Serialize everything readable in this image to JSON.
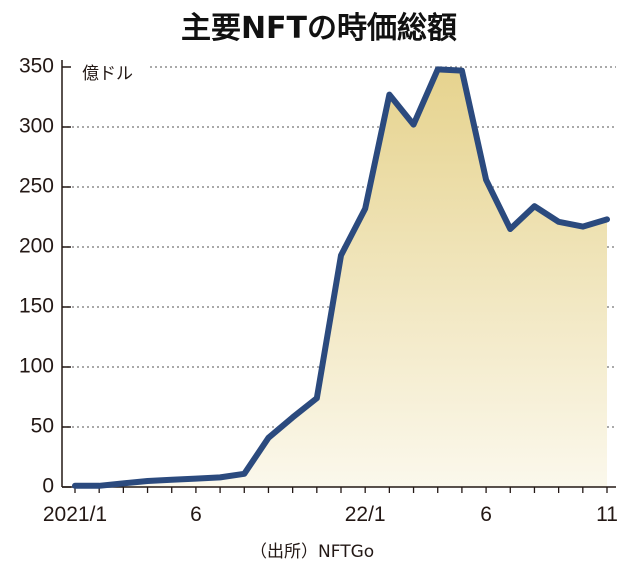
{
  "chart_data": {
    "type": "area",
    "title": "主要NFTの時価総額",
    "unit_label": "億ドル",
    "source": "（出所）NFTGo",
    "x": [
      "2021/1",
      "2021/2",
      "2021/3",
      "2021/4",
      "2021/5",
      "2021/6",
      "2021/7",
      "2021/8",
      "2021/9",
      "2021/10",
      "2021/11",
      "2021/12",
      "2022/1",
      "2022/2",
      "2022/3",
      "2022/4",
      "2022/5",
      "2022/6",
      "2022/7",
      "2022/8",
      "2022/9",
      "2022/10",
      "2022/11"
    ],
    "values": [
      1,
      1,
      3,
      5,
      6,
      7,
      8,
      11,
      41,
      58,
      74,
      193,
      232,
      327,
      302,
      348,
      347,
      256,
      215,
      234,
      221,
      217,
      223
    ],
    "x_tick_labels": [
      {
        "index": 0,
        "label": "2021/1"
      },
      {
        "index": 5,
        "label": "6"
      },
      {
        "index": 12,
        "label": "22/1"
      },
      {
        "index": 17,
        "label": "6"
      },
      {
        "index": 22,
        "label": "11"
      }
    ],
    "y_ticks": [
      0,
      50,
      100,
      150,
      200,
      250,
      300,
      350
    ],
    "ylim": [
      0,
      350
    ],
    "grid": "dotted horizontal",
    "colors": {
      "line": "#2b4a7e",
      "fill_top": "#e6d38e",
      "fill_bottom": "#fbf8ec"
    }
  }
}
